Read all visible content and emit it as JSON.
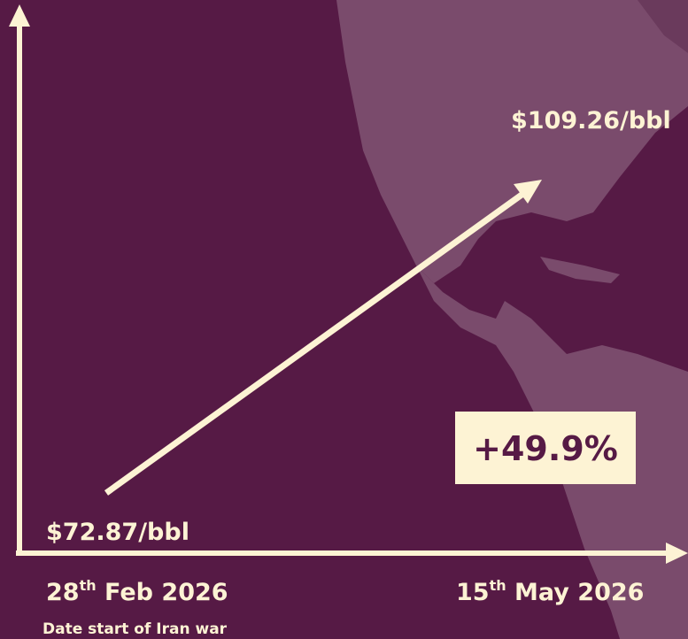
{
  "start": {
    "price": "$72.87/bbl",
    "day": "28",
    "suffix": "th",
    "date": " Feb 2026",
    "note": "Date start of Iran war"
  },
  "end": {
    "price": "$109.26/bbl",
    "day": "15",
    "suffix": "th",
    "date": " May 2026"
  },
  "change": "+49.9%"
}
